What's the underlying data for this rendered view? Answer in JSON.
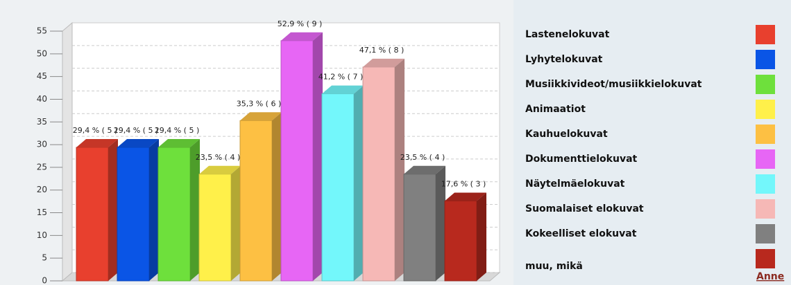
{
  "chart_data": {
    "type": "bar3d",
    "categories": [
      "Lastenelokuvat",
      "Lyhytelokuvat",
      "Musiikkivideot/musiikkielokuvat",
      "Animaatiot",
      "Kauhuelokuvat",
      "Dokumenttielokuvat",
      "Näytelmäelokuvat",
      "Suomalaiset elokuvat",
      "Kokeelliset elokuvat",
      "muu, mikä"
    ],
    "values": [
      29.4,
      29.4,
      29.4,
      23.5,
      35.3,
      52.9,
      41.2,
      47.1,
      23.5,
      17.6
    ],
    "value_labels": [
      "29,4 % ( 5 )",
      "29,4 % ( 5 )",
      "29,4 % ( 5 )",
      "23,5 % ( 4 )",
      "35,3 % ( 6 )",
      "52,9 % ( 9 )",
      "41,2 % ( 7 )",
      "47,1 % ( 8 )",
      "23,5 % ( 4 )",
      "17,6 % ( 3 )"
    ],
    "colors": [
      "#e8402e",
      "#0a55e6",
      "#6ee03c",
      "#fff04a",
      "#fdc043",
      "#e766f5",
      "#73f7fb",
      "#f6b8b6",
      "#808080",
      "#b8291e"
    ],
    "ylim": [
      0,
      55
    ],
    "yticks": [
      0,
      5,
      10,
      15,
      20,
      25,
      30,
      35,
      40,
      45,
      50,
      55
    ],
    "grid": true,
    "link": "Anne"
  }
}
